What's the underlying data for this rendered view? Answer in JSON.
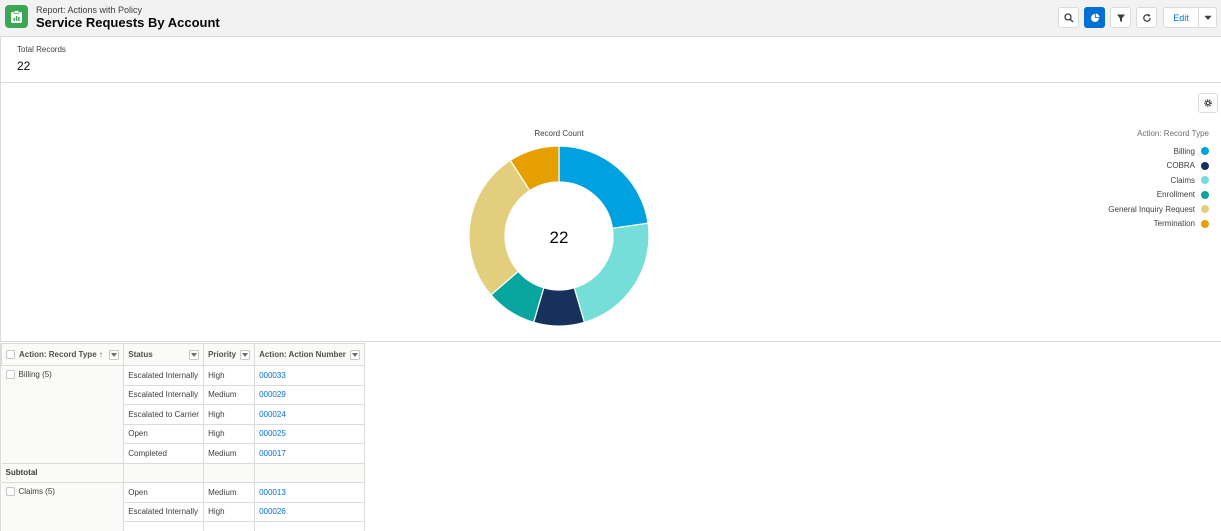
{
  "header": {
    "eyebrow": "Report: Actions with Policy",
    "title": "Service Requests By Account",
    "edit_label": "Edit",
    "icons": [
      "report-icon",
      "search-icon",
      "chart-icon",
      "filter-icon",
      "refresh-icon",
      "chevron-down-icon"
    ]
  },
  "summary": {
    "label": "Total Records",
    "value": "22"
  },
  "chart_data": {
    "type": "pie",
    "title": "Record Count",
    "center_label": "22",
    "legend_title": "Action: Record Type",
    "legend_placement": "top-right",
    "categories": [
      "Billing",
      "COBRA",
      "Claims",
      "Enrollment",
      "General Inquiry Request",
      "Termination"
    ],
    "values": [
      5,
      2,
      5,
      2,
      6,
      2
    ],
    "draw_order": [
      "Billing",
      "Claims",
      "COBRA",
      "Enrollment",
      "General Inquiry Request",
      "Termination"
    ],
    "colors": {
      "Billing": "#00a1e0",
      "COBRA": "#16325c",
      "Claims": "#76ded9",
      "Enrollment": "#08a69e",
      "General Inquiry Request": "#e2ce7d",
      "Termination": "#e69f00"
    }
  },
  "table": {
    "columns": [
      "Action: Record Type",
      "Status",
      "Priority",
      "Action: Action Number"
    ],
    "sort_indicator": "↑",
    "groups": [
      {
        "label": "Billing (5)",
        "rows": [
          {
            "status": "Escalated Internally",
            "priority": "High",
            "number": "000033"
          },
          {
            "status": "Escalated Internally",
            "priority": "Medium",
            "number": "000029"
          },
          {
            "status": "Escalated to Carrier",
            "priority": "High",
            "number": "000024"
          },
          {
            "status": "Open",
            "priority": "High",
            "number": "000025"
          },
          {
            "status": "Completed",
            "priority": "Medium",
            "number": "000017"
          }
        ]
      },
      {
        "label": "Claims (5)",
        "rows": [
          {
            "status": "Open",
            "priority": "Medium",
            "number": "000013"
          },
          {
            "status": "Escalated Internally",
            "priority": "High",
            "number": "000026"
          }
        ]
      }
    ],
    "subtotal_label": "Subtotal"
  }
}
